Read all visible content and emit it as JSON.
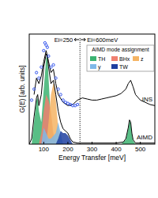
{
  "chart_data": {
    "type": "line",
    "x_label": "Energy Transfer [meV]",
    "y_label": "G(E) [arb. units]",
    "xlim": [
      40,
      560
    ],
    "xticks": [
      100,
      200,
      300,
      400,
      500
    ],
    "ylim": [
      0,
      1
    ],
    "tick_labels": "x",
    "legend": "upper right",
    "legend_title": "AIMD mode assignment",
    "vline": 250,
    "annotations": [
      "Ei=250",
      "Ei=600meV"
    ],
    "series": [
      {
        "name": "TH",
        "type": "area",
        "color": "#3cb371",
        "x": [
          50,
          60,
          70,
          75,
          80,
          90,
          100,
          110,
          115,
          120,
          130,
          140,
          150,
          420,
          440,
          450,
          455,
          460,
          465,
          470,
          480
        ],
        "values": [
          0,
          0.2,
          0.4,
          0.42,
          0.3,
          0.2,
          0.5,
          0.78,
          0.8,
          0.6,
          0.2,
          0.05,
          0,
          0,
          0.04,
          0.14,
          0.21,
          0.19,
          0.09,
          0.03,
          0
        ]
      },
      {
        "name": "BHx",
        "type": "area",
        "color": "#f08070",
        "x": [
          80,
          90,
          100,
          110,
          120,
          130,
          140,
          150
        ],
        "values": [
          0,
          0.1,
          0.3,
          0.45,
          0.4,
          0.3,
          0.1,
          0
        ]
      },
      {
        "name": "z",
        "type": "area",
        "color": "#f5b464",
        "x": [
          110,
          120,
          130,
          140,
          145,
          150,
          160,
          170
        ],
        "values": [
          0,
          0.2,
          0.45,
          0.55,
          0.52,
          0.4,
          0.15,
          0
        ]
      },
      {
        "name": "y",
        "type": "area",
        "color": "#7fb8e8",
        "x": [
          90,
          100,
          110,
          120,
          130,
          150,
          160,
          170,
          180
        ],
        "values": [
          0,
          0.15,
          0.1,
          0.05,
          0.05,
          0.1,
          0.2,
          0.1,
          0
        ]
      },
      {
        "name": "TW",
        "type": "area",
        "color": "#1f3fa0",
        "x": [
          150,
          160,
          170,
          180,
          190,
          200,
          210,
          220
        ],
        "values": [
          0,
          0.05,
          0.12,
          0.1,
          0.1,
          0.08,
          0.04,
          0
        ]
      },
      {
        "name": "AIMD",
        "type": "line",
        "color": "#000000",
        "x": [
          40,
          50,
          60,
          70,
          75,
          80,
          90,
          100,
          110,
          115,
          120,
          130,
          140,
          150,
          160,
          170,
          180,
          190,
          200,
          210,
          220,
          240,
          300,
          400,
          430,
          440,
          450,
          455,
          460,
          465,
          470,
          480,
          500,
          560
        ],
        "values": [
          0,
          0.05,
          0.25,
          0.42,
          0.45,
          0.35,
          0.45,
          0.7,
          0.82,
          0.8,
          0.7,
          0.55,
          0.58,
          0.45,
          0.3,
          0.2,
          0.14,
          0.12,
          0.1,
          0.05,
          0.02,
          0.01,
          0.01,
          0.01,
          0.02,
          0.05,
          0.15,
          0.22,
          0.2,
          0.1,
          0.04,
          0.01,
          0.01,
          0.01
        ]
      },
      {
        "name": "INS",
        "type": "line",
        "color": "#000000",
        "x": [
          60,
          70,
          80,
          90,
          100,
          110,
          120,
          130,
          140,
          150,
          160,
          180,
          200,
          220,
          240,
          260,
          280,
          300,
          320,
          340,
          360,
          380,
          400,
          420,
          440,
          450,
          460,
          470,
          480,
          500,
          520,
          540,
          560
        ],
        "values": [
          0.45,
          0.6,
          0.55,
          0.62,
          0.75,
          0.85,
          0.75,
          0.65,
          0.68,
          0.55,
          0.45,
          0.38,
          0.35,
          0.36,
          0.4,
          0.42,
          0.41,
          0.4,
          0.4,
          0.41,
          0.42,
          0.43,
          0.44,
          0.46,
          0.5,
          0.55,
          0.58,
          0.52,
          0.45,
          0.4,
          0.38,
          0.36,
          0.35
        ]
      },
      {
        "type": "scatter",
        "color": "#3355ee",
        "marker": "circle",
        "x": [
          50,
          60,
          70,
          80,
          90,
          100,
          105,
          110,
          115,
          120,
          130,
          140,
          150,
          160,
          170,
          180,
          190,
          200,
          210,
          220,
          230,
          240
        ],
        "values": [
          0.4,
          0.5,
          0.65,
          0.6,
          0.7,
          0.85,
          0.92,
          0.9,
          0.88,
          0.8,
          0.7,
          0.72,
          0.6,
          0.5,
          0.45,
          0.4,
          0.38,
          0.37,
          0.36,
          0.35,
          0.35,
          0.36
        ]
      }
    ]
  }
}
